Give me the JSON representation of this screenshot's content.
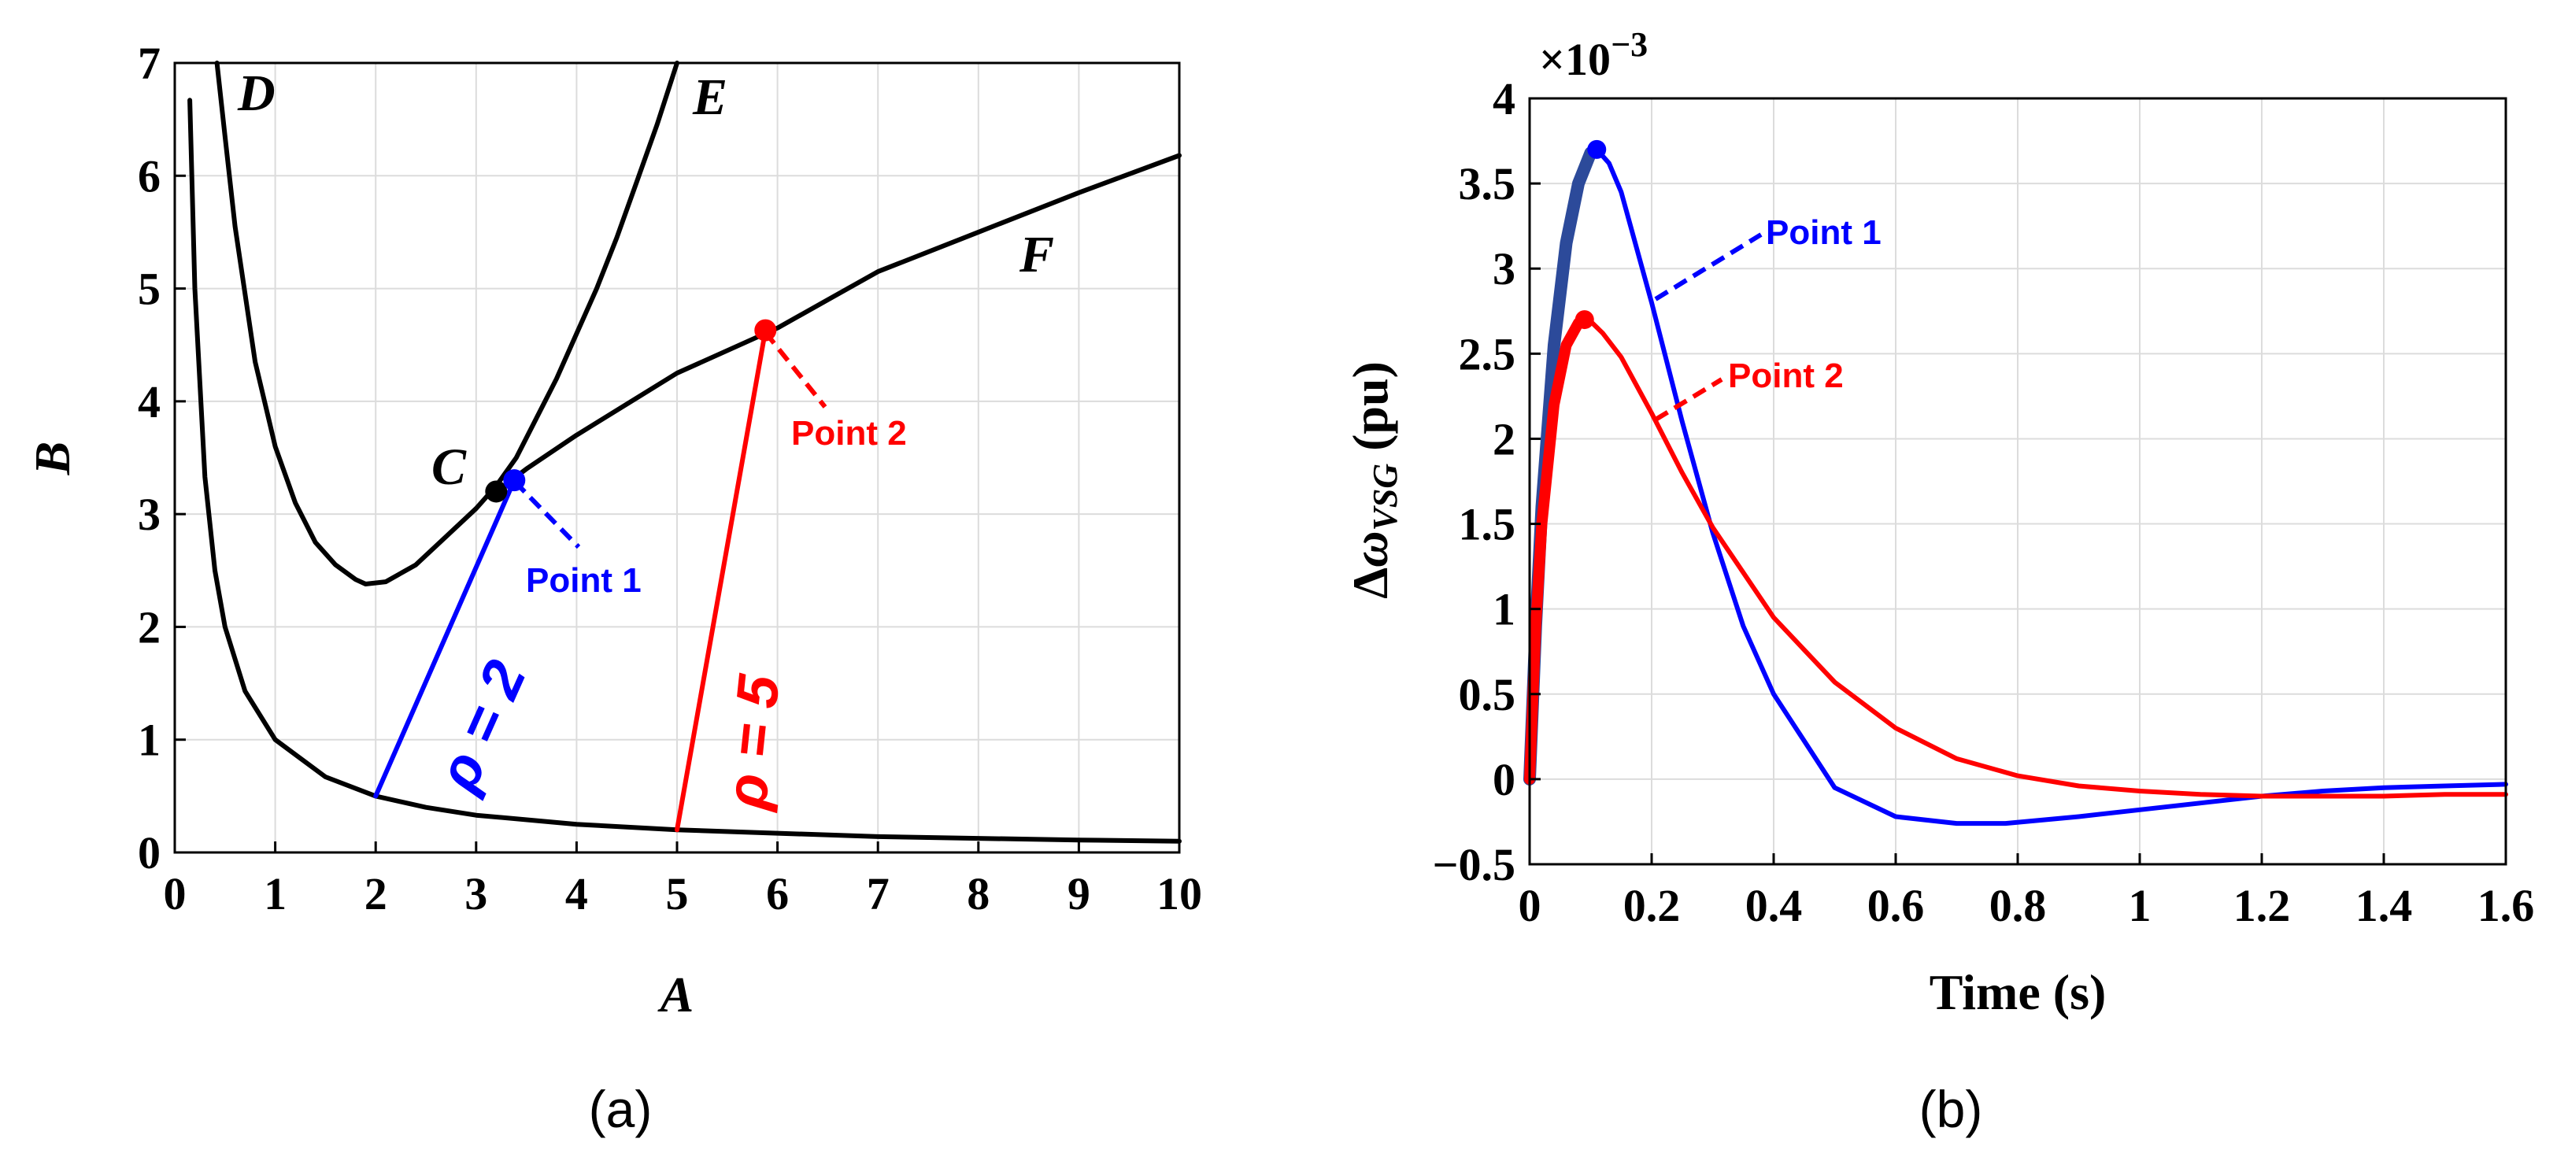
{
  "chart_data": [
    {
      "type": "line",
      "panel": "a",
      "caption": "(a)",
      "xlabel": "A",
      "ylabel": "B",
      "xlim": [
        0,
        10
      ],
      "ylim": [
        0,
        7
      ],
      "xticks": [
        "0",
        "1",
        "2",
        "3",
        "4",
        "5",
        "6",
        "7",
        "8",
        "9",
        "10"
      ],
      "yticks": [
        "0",
        "1",
        "2",
        "3",
        "4",
        "5",
        "6",
        "7"
      ],
      "grid": true,
      "series": [
        {
          "name": "lower_boundary",
          "color": "#000000",
          "x": [
            0.15,
            0.2,
            0.3,
            0.4,
            0.5,
            0.7,
            1.0,
            1.5,
            2.0,
            2.5,
            3.0,
            4.0,
            5.0,
            6.0,
            7.0,
            8.0,
            9.0,
            10.0
          ],
          "y": [
            6.67,
            5.0,
            3.33,
            2.5,
            2.0,
            1.43,
            1.0,
            0.67,
            0.5,
            0.4,
            0.33,
            0.25,
            0.2,
            0.17,
            0.14,
            0.125,
            0.11,
            0.1
          ]
        },
        {
          "name": "D",
          "color": "#000000",
          "x": [
            0.42,
            0.5,
            0.6,
            0.8,
            1.0,
            1.2,
            1.4,
            1.6,
            1.8,
            1.9,
            2.1,
            2.4,
            2.7,
            3.0,
            3.2,
            3.4,
            3.6,
            3.8,
            4.0,
            4.2,
            4.4,
            4.6,
            4.8,
            5.0
          ],
          "y": [
            7.0,
            6.35,
            5.55,
            4.35,
            3.6,
            3.1,
            2.75,
            2.55,
            2.42,
            2.38,
            2.4,
            2.55,
            2.8,
            3.05,
            3.25,
            3.5,
            3.85,
            4.2,
            4.6,
            5.0,
            5.45,
            5.95,
            6.45,
            7.0
          ]
        },
        {
          "name": "F",
          "color": "#000000",
          "x": [
            3.2,
            3.5,
            4.0,
            5.0,
            6.0,
            7.0,
            8.0,
            9.0,
            10.0
          ],
          "y": [
            3.2,
            3.4,
            3.7,
            4.25,
            4.65,
            5.15,
            5.5,
            5.85,
            6.18
          ]
        },
        {
          "name": "rho=2",
          "color": "#0000ff",
          "x": [
            2.0,
            3.38
          ],
          "y": [
            0.5,
            3.3
          ]
        },
        {
          "name": "rho=5",
          "color": "#ff0000",
          "x": [
            5.0,
            5.88
          ],
          "y": [
            0.2,
            4.63
          ]
        }
      ],
      "points": [
        {
          "name": "C",
          "x": 3.2,
          "y": 3.2,
          "color": "#000000"
        },
        {
          "name": "Point 1",
          "x": 3.38,
          "y": 3.3,
          "color": "#0000ff"
        },
        {
          "name": "Point 2",
          "x": 5.88,
          "y": 4.63,
          "color": "#ff0000"
        }
      ],
      "curve_labels": {
        "D": "D",
        "E": "E",
        "F": "F",
        "C": "C"
      },
      "annotations": {
        "point1": "Point 1",
        "point2": "Point 2",
        "rho2": "ρ = 2",
        "rho5": "ρ = 5"
      }
    },
    {
      "type": "line",
      "panel": "b",
      "caption": "(b)",
      "xlabel": "Time (s)",
      "ylabel": "Δω_VSG (pu)",
      "y_multiplier": "×10−3",
      "xlim": [
        0,
        1.6
      ],
      "ylim": [
        -0.5,
        4
      ],
      "xticks": [
        "0",
        "0.2",
        "0.4",
        "0.6",
        "0.8",
        "1",
        "1.2",
        "1.4",
        "1.6"
      ],
      "yticks": [
        "−0.5",
        "0",
        "0.5",
        "1",
        "1.5",
        "2",
        "2.5",
        "3",
        "3.5",
        "4"
      ],
      "grid": true,
      "series": [
        {
          "name": "Point 1",
          "color": "#0000ff",
          "x": [
            0,
            0.01,
            0.02,
            0.04,
            0.06,
            0.08,
            0.1,
            0.11,
            0.13,
            0.15,
            0.2,
            0.25,
            0.3,
            0.35,
            0.4,
            0.5,
            0.6,
            0.7,
            0.78,
            0.9,
            1.0,
            1.1,
            1.2,
            1.3,
            1.4,
            1.5,
            1.6
          ],
          "y": [
            0,
            0.9,
            1.6,
            2.55,
            3.15,
            3.5,
            3.68,
            3.7,
            3.62,
            3.45,
            2.8,
            2.1,
            1.45,
            0.9,
            0.5,
            -0.05,
            -0.22,
            -0.26,
            -0.26,
            -0.22,
            -0.18,
            -0.14,
            -0.1,
            -0.07,
            -0.05,
            -0.04,
            -0.03
          ]
        },
        {
          "name": "Point 2",
          "color": "#ff0000",
          "x": [
            0,
            0.01,
            0.02,
            0.04,
            0.06,
            0.08,
            0.09,
            0.1,
            0.12,
            0.15,
            0.2,
            0.25,
            0.3,
            0.4,
            0.5,
            0.6,
            0.7,
            0.8,
            0.9,
            1.0,
            1.1,
            1.2,
            1.3,
            1.4,
            1.5,
            1.6
          ],
          "y": [
            0,
            0.9,
            1.5,
            2.2,
            2.55,
            2.68,
            2.7,
            2.69,
            2.62,
            2.48,
            2.15,
            1.8,
            1.48,
            0.95,
            0.57,
            0.3,
            0.12,
            0.02,
            -0.04,
            -0.07,
            -0.09,
            -0.1,
            -0.1,
            -0.1,
            -0.09,
            -0.09
          ]
        }
      ],
      "points": [
        {
          "name": "Point 1 peak",
          "x": 0.11,
          "y": 3.7,
          "color": "#0000ff"
        },
        {
          "name": "Point 2 peak",
          "x": 0.09,
          "y": 2.7,
          "color": "#ff0000"
        }
      ],
      "annotations": {
        "point1": "Point 1",
        "point2": "Point 2"
      }
    }
  ],
  "colors": {
    "black": "#000000",
    "blue": "#0000ff",
    "red": "#ff0000",
    "darkblue": "#2c4a9a",
    "grid": "#dcdcdc"
  }
}
